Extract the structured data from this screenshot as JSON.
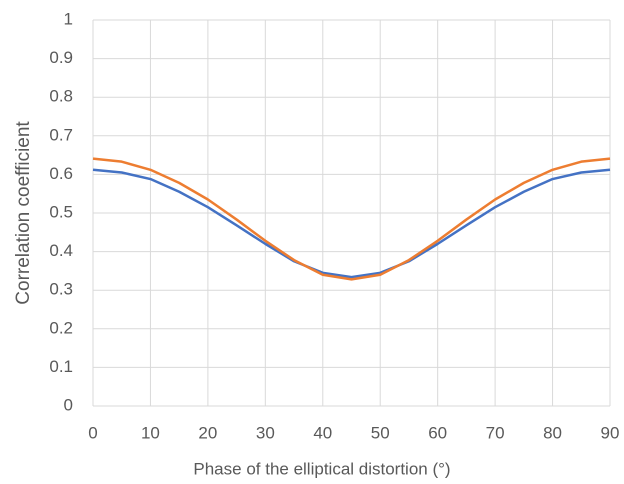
{
  "chart_data": {
    "type": "line",
    "x_label": "Phase of the elliptical distortion (°)",
    "y_label": "Correlation coefficient",
    "x": [
      0,
      5,
      10,
      15,
      20,
      25,
      30,
      35,
      40,
      45,
      50,
      55,
      60,
      65,
      70,
      75,
      80,
      85,
      90
    ],
    "series": [
      {
        "color": "#4472c4",
        "values": [
          0.612,
          0.605,
          0.588,
          0.555,
          0.515,
          0.468,
          0.42,
          0.375,
          0.345,
          0.334,
          0.345,
          0.375,
          0.42,
          0.468,
          0.515,
          0.555,
          0.588,
          0.605,
          0.612
        ]
      },
      {
        "color": "#ed7d31",
        "values": [
          0.641,
          0.633,
          0.612,
          0.578,
          0.535,
          0.483,
          0.428,
          0.378,
          0.34,
          0.328,
          0.34,
          0.378,
          0.428,
          0.483,
          0.535,
          0.578,
          0.612,
          0.633,
          0.641
        ]
      }
    ],
    "xlim": [
      0,
      90
    ],
    "xticks": [
      0,
      10,
      20,
      30,
      40,
      50,
      60,
      70,
      80,
      90
    ],
    "ylim": [
      0,
      1
    ],
    "yticks": [
      0,
      0.1,
      0.2,
      0.3,
      0.4,
      0.5,
      0.6,
      0.7,
      0.8,
      0.9,
      1
    ],
    "grid": true
  }
}
